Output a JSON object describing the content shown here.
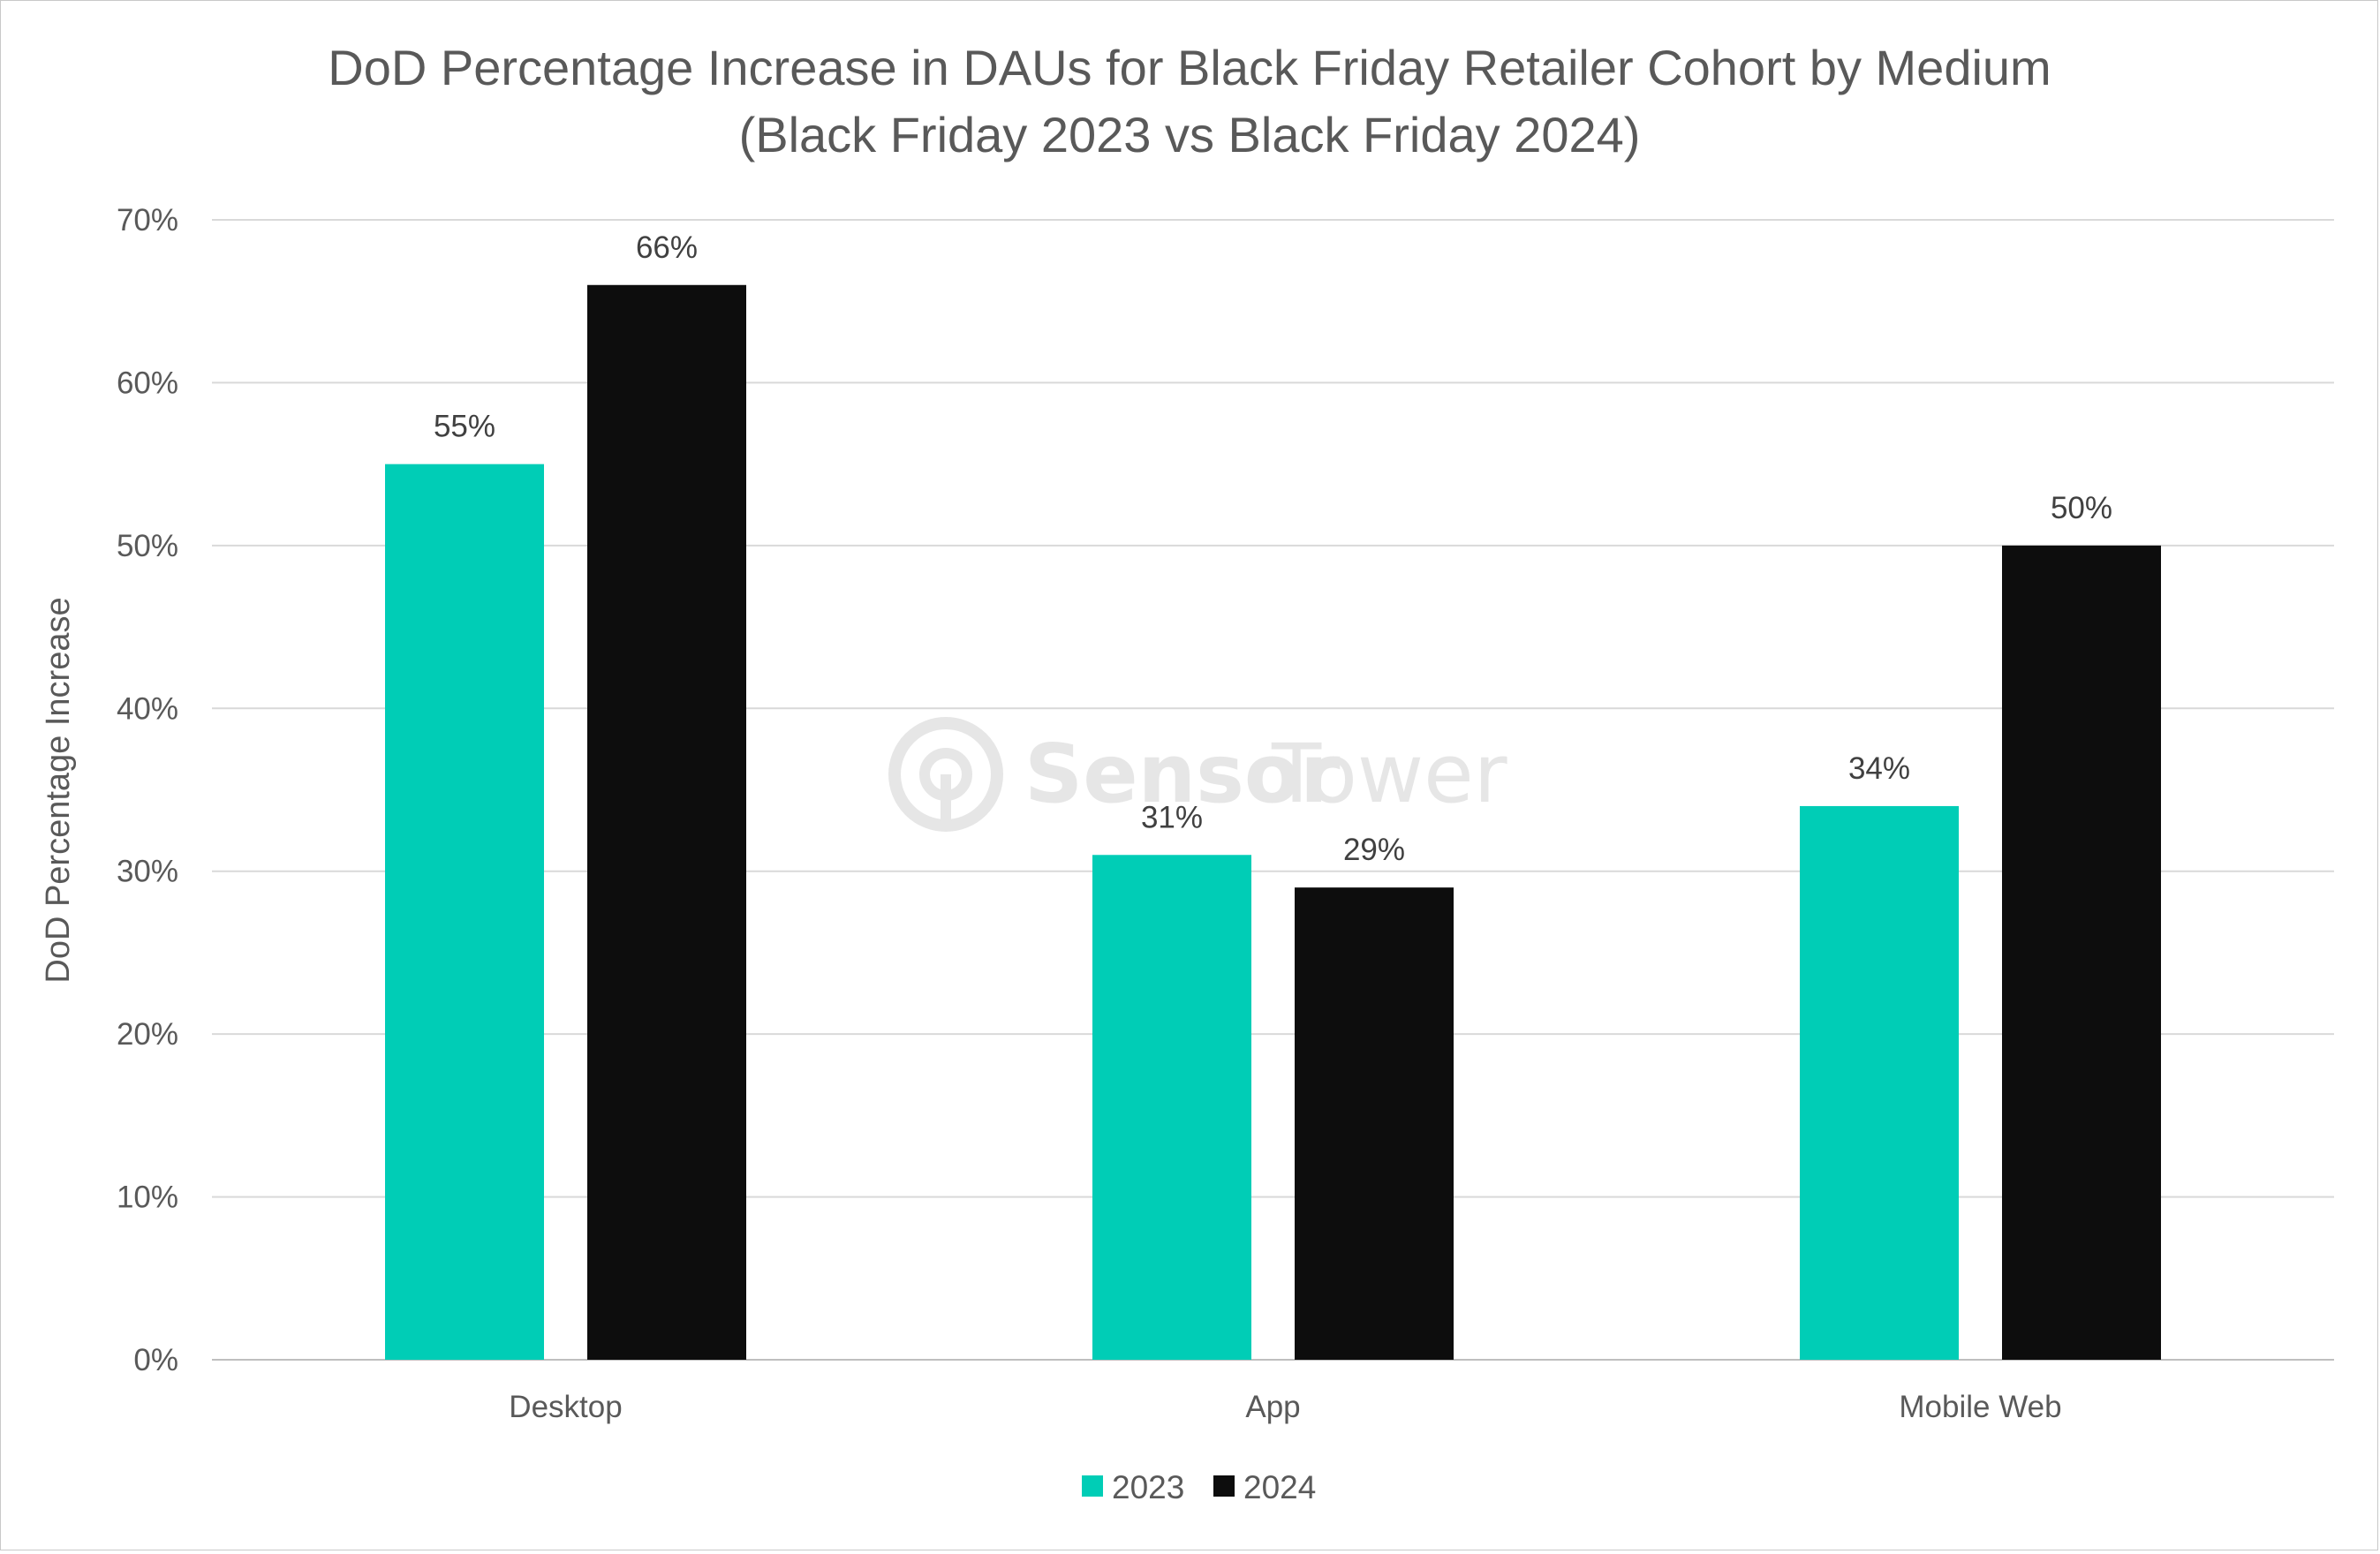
{
  "chart_data": {
    "type": "bar",
    "title_line1": "DoD Percentage Increase in DAUs for Black Friday Retailer Cohort by Medium",
    "title_line2": "(Black Friday 2023 vs Black Friday 2024)",
    "ylabel": "DoD Percentage Increase",
    "xlabel": "",
    "categories": [
      "Desktop",
      "App",
      "Mobile Web"
    ],
    "series": [
      {
        "name": "2023",
        "color": "#00CDB6",
        "values": [
          55,
          31,
          34
        ],
        "labels": [
          "55%",
          "31%",
          "34%"
        ]
      },
      {
        "name": "2024",
        "color": "#0D0D0D",
        "values": [
          66,
          29,
          50
        ],
        "labels": [
          "66%",
          "29%",
          "50%"
        ]
      }
    ],
    "ylim": [
      0,
      70
    ],
    "yticks": [
      0,
      10,
      20,
      30,
      40,
      50,
      60,
      70
    ],
    "ytick_labels": [
      "0%",
      "10%",
      "20%",
      "30%",
      "40%",
      "50%",
      "60%",
      "70%"
    ],
    "grid": true,
    "legend_position": "bottom-center"
  },
  "watermark": {
    "brand_bold": "Sensor",
    "brand_light": "Tower",
    "icon": "sensor-tower-logo-icon"
  }
}
